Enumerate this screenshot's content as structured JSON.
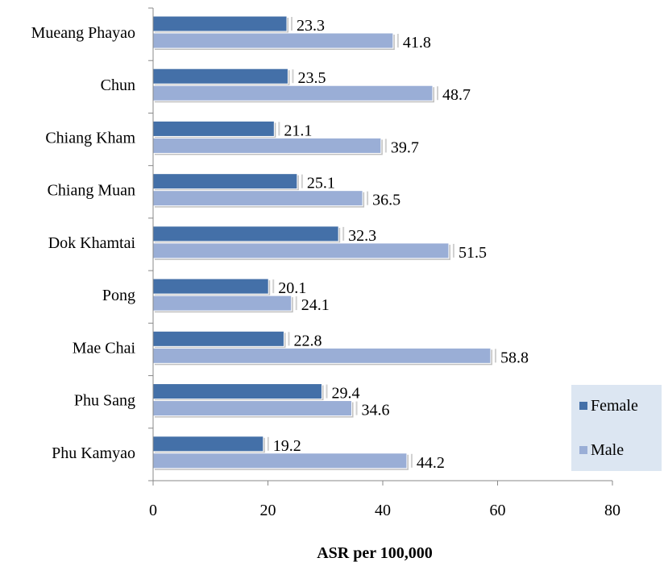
{
  "chart_data": {
    "type": "bar",
    "orientation": "horizontal",
    "categories": [
      "Mueang Phayao",
      "Chun",
      "Chiang Kham",
      "Chiang Muan",
      "Dok Khamtai",
      "Pong",
      "Mae Chai",
      "Phu Sang",
      "Phu Kamyao"
    ],
    "series": [
      {
        "name": "Female",
        "color": "#4470a8",
        "values": [
          23.3,
          23.5,
          21.1,
          25.1,
          32.3,
          20.1,
          22.8,
          29.4,
          19.2
        ],
        "labels": [
          "23.3",
          "23.5",
          "21.1",
          "25.1",
          "32.3",
          "20.1",
          "22.8",
          "29.4",
          "19.2"
        ]
      },
      {
        "name": "Male",
        "color": "#9aaed6",
        "values": [
          41.8,
          48.7,
          39.7,
          36.5,
          51.5,
          24.1,
          58.8,
          34.6,
          44.2
        ],
        "labels": [
          "41.8",
          "48.7",
          "39.7",
          "36.5",
          "51.5",
          "24.1",
          "58.8",
          "34.6",
          "44.2"
        ]
      }
    ],
    "xlabel": "ASR per 100,000",
    "ylabel": "",
    "xlim": [
      0,
      80
    ],
    "xticks": [
      "0",
      "20",
      "40",
      "60",
      "80"
    ],
    "grid": false,
    "legend": {
      "position": "bottom-right",
      "background": "#dce6f2"
    }
  }
}
